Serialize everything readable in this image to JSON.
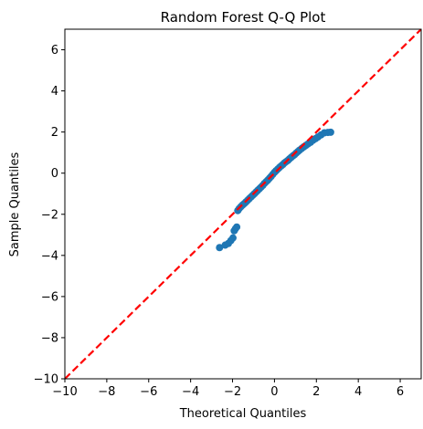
{
  "chart_data": {
    "type": "scatter",
    "title": "Random Forest Q-Q Plot",
    "xlabel": "Theoretical Quantiles",
    "ylabel": "Sample Quantiles",
    "xlim": [
      -10,
      7
    ],
    "ylim": [
      -10,
      7
    ],
    "xticks": [
      -10,
      -8,
      -6,
      -4,
      -2,
      0,
      2,
      4,
      6
    ],
    "yticks": [
      -10,
      -8,
      -6,
      -4,
      -2,
      0,
      2,
      4,
      6
    ],
    "grid": false,
    "marker_color": "#1f77b4",
    "reference_line": {
      "style": "dashed",
      "color": "#ff0000",
      "slope": 1,
      "intercept": 0
    },
    "points": [
      [
        -2.62,
        -3.62
      ],
      [
        -2.35,
        -3.5
      ],
      [
        -2.2,
        -3.42
      ],
      [
        -2.08,
        -3.28
      ],
      [
        -1.98,
        -3.15
      ],
      [
        -1.92,
        -2.8
      ],
      [
        -1.86,
        -2.7
      ],
      [
        -1.8,
        -2.62
      ],
      [
        -1.75,
        -1.82
      ],
      [
        -1.68,
        -1.72
      ],
      [
        -1.6,
        -1.63
      ],
      [
        -1.52,
        -1.55
      ],
      [
        -1.44,
        -1.48
      ],
      [
        -1.36,
        -1.4
      ],
      [
        -1.28,
        -1.32
      ],
      [
        -1.2,
        -1.24
      ],
      [
        -1.12,
        -1.16
      ],
      [
        -1.04,
        -1.08
      ],
      [
        -0.96,
        -1.0
      ],
      [
        -0.88,
        -0.92
      ],
      [
        -0.8,
        -0.84
      ],
      [
        -0.72,
        -0.76
      ],
      [
        -0.64,
        -0.68
      ],
      [
        -0.56,
        -0.6
      ],
      [
        -0.48,
        -0.5
      ],
      [
        -0.4,
        -0.42
      ],
      [
        -0.32,
        -0.34
      ],
      [
        -0.24,
        -0.25
      ],
      [
        -0.16,
        -0.16
      ],
      [
        -0.08,
        -0.06
      ],
      [
        0.0,
        0.04
      ],
      [
        0.08,
        0.12
      ],
      [
        0.16,
        0.2
      ],
      [
        0.24,
        0.28
      ],
      [
        0.32,
        0.35
      ],
      [
        0.4,
        0.42
      ],
      [
        0.48,
        0.5
      ],
      [
        0.56,
        0.56
      ],
      [
        0.64,
        0.62
      ],
      [
        0.72,
        0.7
      ],
      [
        0.8,
        0.77
      ],
      [
        0.88,
        0.84
      ],
      [
        0.96,
        0.9
      ],
      [
        1.04,
        0.98
      ],
      [
        1.12,
        1.05
      ],
      [
        1.2,
        1.12
      ],
      [
        1.3,
        1.2
      ],
      [
        1.4,
        1.28
      ],
      [
        1.5,
        1.35
      ],
      [
        1.6,
        1.42
      ],
      [
        1.72,
        1.5
      ],
      [
        1.84,
        1.6
      ],
      [
        1.96,
        1.68
      ],
      [
        2.08,
        1.76
      ],
      [
        2.22,
        1.86
      ],
      [
        2.38,
        1.96
      ],
      [
        2.55,
        1.98
      ],
      [
        2.68,
        1.99
      ]
    ]
  }
}
